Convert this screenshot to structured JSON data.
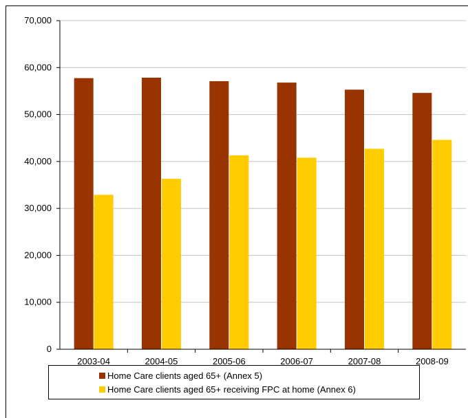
{
  "chart_data": {
    "type": "bar",
    "categories": [
      "2003-04",
      "2004-05",
      "2005-06",
      "2006-07",
      "2007-08",
      "2008-09"
    ],
    "series": [
      {
        "name": "Home Care clients aged 65+ (Annex 5)",
        "color": "#993300",
        "values": [
          57750,
          57850,
          57100,
          56800,
          55300,
          54600
        ]
      },
      {
        "name": "Home Care clients aged 65+ receiving FPC at home (Annex 6)",
        "color": "#ffcc00",
        "values": [
          32900,
          36300,
          41300,
          40800,
          42700,
          44600
        ]
      }
    ],
    "ylim": [
      0,
      70000
    ],
    "yticks": [
      0,
      10000,
      20000,
      30000,
      40000,
      50000,
      60000,
      70000
    ],
    "ytick_labels": [
      "0",
      "10,000",
      "20,000",
      "30,000",
      "40,000",
      "50,000",
      "60,000",
      "70,000"
    ],
    "grid": true,
    "legend_position": "bottom",
    "title": "",
    "xlabel": "",
    "ylabel": ""
  }
}
